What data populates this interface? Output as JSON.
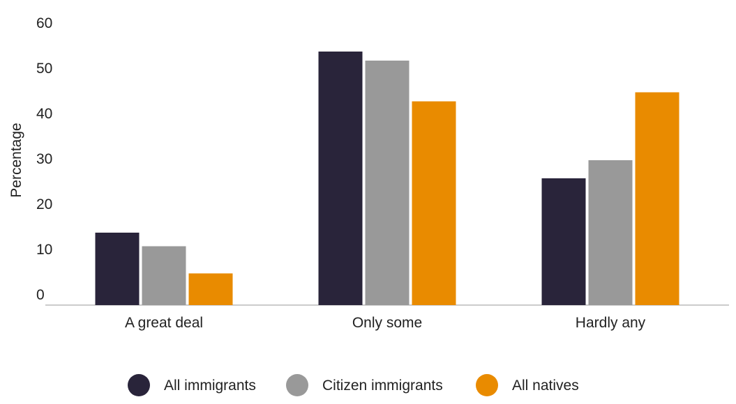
{
  "chart_data": {
    "type": "bar",
    "y_label": "Percentage",
    "categories": [
      "A great deal",
      "Only some",
      "Hardly any"
    ],
    "series": [
      {
        "name": "All immigrants",
        "color": "#29243a",
        "values": [
          16,
          56,
          28
        ]
      },
      {
        "name": "Citizen immigrants",
        "color": "#999999",
        "values": [
          13,
          54,
          32
        ]
      },
      {
        "name": "All natives",
        "color": "#e98b00",
        "values": [
          7,
          45,
          47
        ]
      }
    ],
    "ylim": [
      0,
      60
    ],
    "yticks": [
      0,
      10,
      20,
      30,
      40,
      50,
      60
    ],
    "grid": false,
    "legend": "bottom"
  }
}
